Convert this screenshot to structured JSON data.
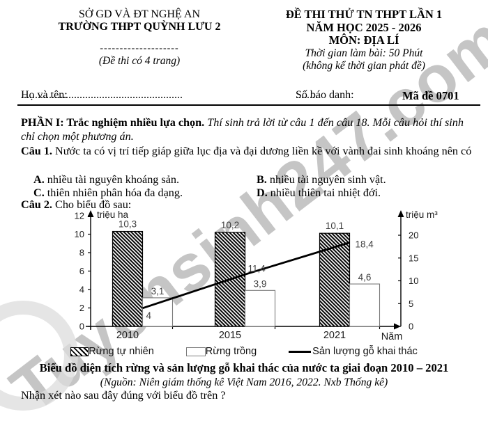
{
  "watermark": {
    "text": "Tuyensinh247.com"
  },
  "header": {
    "left": {
      "line1": "SỞ GD VÀ ĐT NGHỆ AN",
      "line2": "TRƯỜNG THPT QUỲNH LƯU 2",
      "dashes": "--------------------",
      "note": "(Đề thi có 4 trang)"
    },
    "right": {
      "line1": "ĐỀ THI THỬ TN THPT LẦN 1",
      "line2": "NĂM HỌC 2025 - 2026",
      "line3": "MÔN: ĐỊA LÍ",
      "line4": "Thời gian làm bài: 50 Phút",
      "line5": "(không kể thời gian phát đề)"
    },
    "name_label": "Họ và tên:",
    "name_dots": "..........................................................",
    "sbd_label": "Số báo danh:",
    "sbd_dots": "........",
    "code": "Mã đề 0701"
  },
  "part1": {
    "title": "PHẦN I: Trắc nghiệm nhiều lựa chọn.",
    "instructions": " Thí sinh trả lời từ câu 1 đến câu 18. Mỗi câu hỏi thí sinh chỉ chọn một phương án."
  },
  "q1": {
    "label": "Câu 1.",
    "text": " Nước ta có vị trí tiếp giáp giữa lục địa và đại dương liền kề với vành đai sinh khoáng nên có",
    "options": [
      {
        "key": "A.",
        "text": " nhiều tài nguyên khoáng sản."
      },
      {
        "key": "B.",
        "text": " nhiều tài nguyên sinh vật."
      },
      {
        "key": "C.",
        "text": " thiên nhiên phân hóa đa dạng."
      },
      {
        "key": "D.",
        "text": " nhiều thiên tai nhiệt đới."
      }
    ]
  },
  "q2": {
    "label": "Câu 2.",
    "text": " Cho biểu đồ sau:",
    "question": "Nhận xét nào sau đây đúng với biểu đồ trên ?"
  },
  "chart_data": {
    "type": "bar+line combo",
    "categories": [
      "2010",
      "2015",
      "2021"
    ],
    "series": [
      {
        "name": "Rừng tự nhiên",
        "type": "bar",
        "style": "hatched",
        "axis": "left",
        "values": [
          10.3,
          10.2,
          10.1
        ],
        "labels": [
          "10,3",
          "10,2",
          "10,1"
        ]
      },
      {
        "name": "Rừng trồng",
        "type": "bar",
        "style": "white",
        "axis": "left",
        "values": [
          3.1,
          3.9,
          4.6
        ],
        "labels": [
          "3,1",
          "3,9",
          "4,6"
        ]
      },
      {
        "name": "Sản lượng gỗ khai thác",
        "type": "line",
        "axis": "right",
        "values": [
          4,
          11.4,
          18.4
        ],
        "labels": [
          "4",
          "11,4",
          "18,4"
        ]
      }
    ],
    "left_axis": {
      "title": "triệu ha",
      "ticks": [
        0,
        2,
        4,
        6,
        8,
        10,
        12
      ],
      "max": 12
    },
    "right_axis": {
      "title": "triệu m³",
      "ticks": [
        0,
        5,
        10,
        15,
        20
      ],
      "max": 20
    },
    "x_axis": {
      "title": "Năm"
    },
    "legend_position": "bottom"
  },
  "caption": {
    "title": "Biểu đồ diện tích rừng và sản lượng gỗ khai thác của nước ta giai đoạn 2010 – 2021",
    "source": "(Nguồn: Niên giám thống kê Việt Nam 2016, 2022. Nxb Thống kê)"
  }
}
